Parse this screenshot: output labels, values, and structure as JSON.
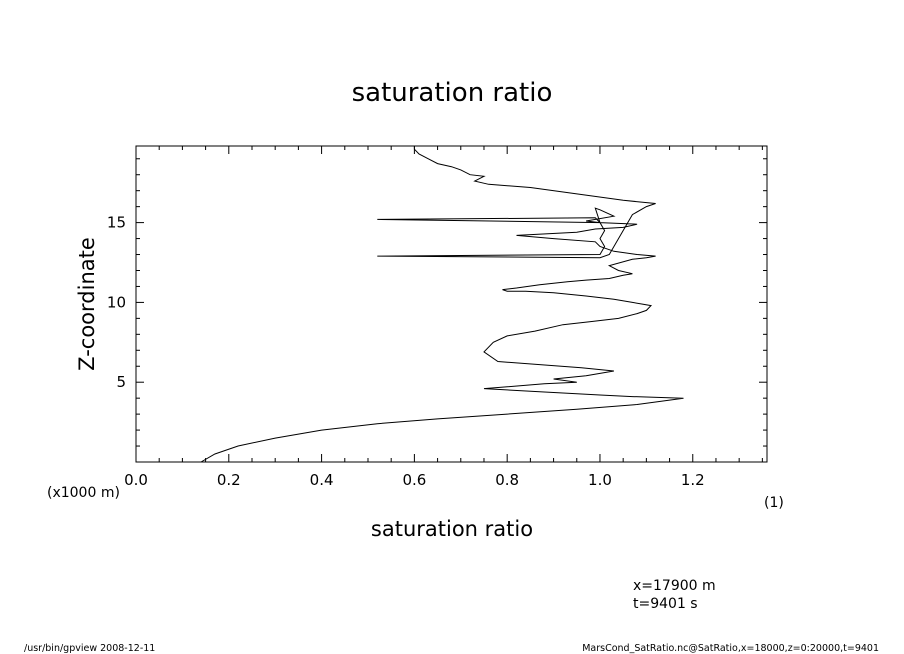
{
  "chart_data": {
    "type": "line",
    "title": "saturation ratio",
    "xlabel": "saturation ratio",
    "ylabel": "Z-coordinate",
    "xunit": "(1)",
    "yunit": "(x1000 m)",
    "xlim": [
      0.0,
      1.36
    ],
    "ylim": [
      0.0,
      19.8
    ],
    "xticks": [
      "0.0",
      "0.2",
      "0.4",
      "0.6",
      "0.8",
      "1.0",
      "1.2"
    ],
    "yticks": [
      "5",
      "10",
      "15"
    ],
    "grid": false,
    "series": [
      {
        "x": [
          0.14,
          0.17,
          0.22,
          0.3,
          0.4,
          0.52,
          0.65,
          0.8,
          0.95,
          1.08,
          1.18,
          1.07,
          1.0,
          0.87,
          0.75,
          0.88,
          0.95,
          0.9,
          0.97,
          1.03,
          0.96,
          0.78,
          0.75,
          0.77,
          0.8,
          0.86,
          0.92,
          0.98,
          1.04,
          1.08,
          1.1,
          1.11,
          1.09,
          1.07,
          1.03,
          0.97,
          0.9,
          0.84,
          0.8,
          0.79,
          0.82,
          0.87,
          0.93,
          0.97,
          1.02,
          1.05,
          1.07,
          1.04,
          1.02,
          1.07,
          1.1,
          1.12,
          1.08,
          1.03,
          1.0,
          0.99,
          0.9,
          0.82,
          0.95,
          0.99,
          1.05,
          1.08,
          1.0,
          0.97,
          1.03,
          1.0,
          0.99,
          1.0,
          0.52,
          0.99,
          1.0,
          1.01,
          1.0,
          1.01,
          1.0,
          0.52,
          1.0,
          1.02,
          1.07,
          1.1,
          1.12,
          1.05,
          0.95,
          0.85,
          0.76,
          0.73,
          0.75,
          0.72,
          0.7,
          0.68,
          0.65,
          0.63,
          0.61,
          0.6,
          0.6
        ],
        "y": [
          0.0,
          0.5,
          1.0,
          1.5,
          2.0,
          2.4,
          2.7,
          3.0,
          3.3,
          3.6,
          4.0,
          4.1,
          4.2,
          4.4,
          4.6,
          4.9,
          5.0,
          5.2,
          5.4,
          5.7,
          5.9,
          6.3,
          6.9,
          7.5,
          7.9,
          8.2,
          8.6,
          8.8,
          9.0,
          9.3,
          9.5,
          9.8,
          9.9,
          10.0,
          10.2,
          10.4,
          10.6,
          10.7,
          10.7,
          10.8,
          10.9,
          11.1,
          11.3,
          11.4,
          11.5,
          11.7,
          11.8,
          12.0,
          12.3,
          12.7,
          12.8,
          12.9,
          13.0,
          13.2,
          13.5,
          13.8,
          14.0,
          14.2,
          14.4,
          14.6,
          14.7,
          14.9,
          15.0,
          15.1,
          15.4,
          15.8,
          15.9,
          15.0,
          15.2,
          15.3,
          15.0,
          14.5,
          14.0,
          13.5,
          13.0,
          12.9,
          12.8,
          13.0,
          15.5,
          16.0,
          16.2,
          16.4,
          16.8,
          17.2,
          17.4,
          17.6,
          17.9,
          18.0,
          18.3,
          18.5,
          18.7,
          19.0,
          19.3,
          19.6,
          19.8
        ]
      }
    ]
  },
  "annotations": {
    "x_pos": "x=17900 m",
    "t_pos": "t=9401 s"
  },
  "footer": {
    "left": "/usr/bin/gpview  2008-12-11",
    "right": "MarsCond_SatRatio.nc@SatRatio,x=18000,z=0:20000,t=9401"
  }
}
